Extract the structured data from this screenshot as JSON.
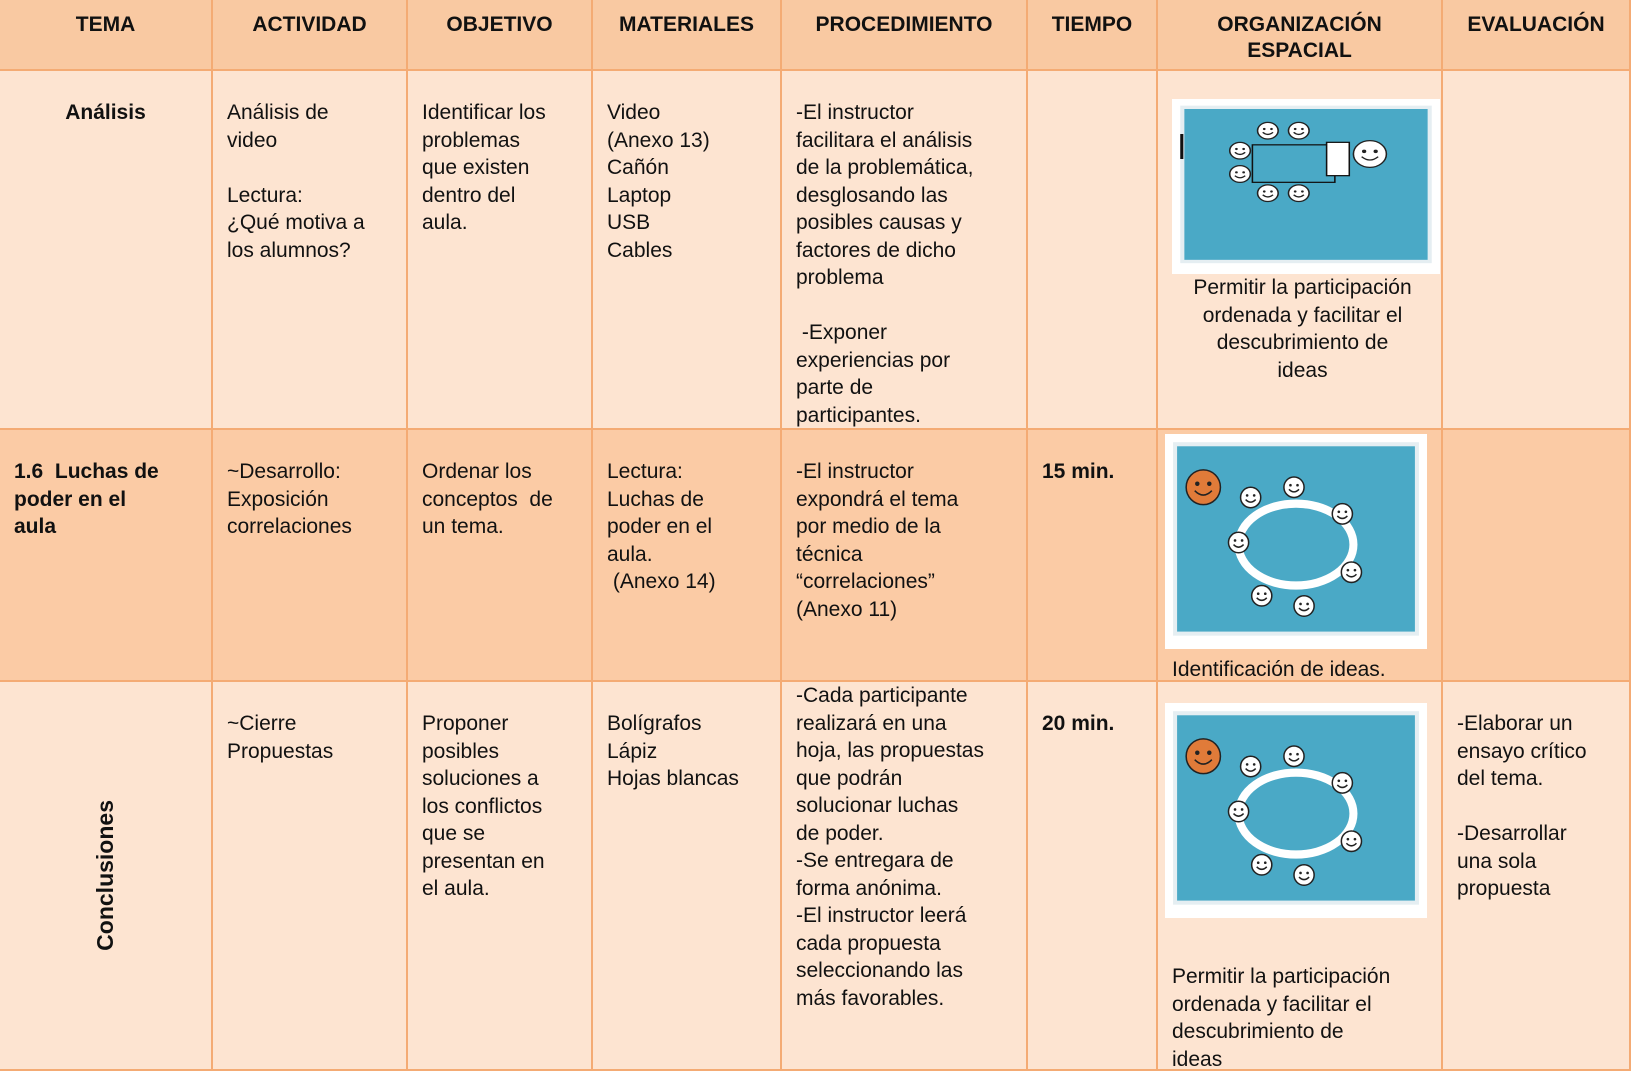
{
  "table": {
    "header": [
      [
        "TEMA"
      ],
      [
        "ACTIVIDAD"
      ],
      [
        "OBJETIVO"
      ],
      [
        "MATERIALES"
      ],
      [
        "PROCEDIMIENTO"
      ],
      [
        "TIEMPO"
      ],
      [
        "ORGANIZACIÓN",
        "ESPACIAL"
      ],
      [
        "EVALUACIÓN"
      ]
    ],
    "rows": [
      [
        [
          [
            "Análisis"
          ]
        ],
        [
          [
            "Análisis de",
            "video"
          ],
          [
            "Lectura:",
            "¿Qué motiva a",
            "los alumnos?"
          ]
        ],
        [
          [
            "Identificar los",
            "problemas",
            "que existen",
            "dentro del",
            "aula."
          ]
        ],
        [
          [
            "Video",
            "(Anexo 13)",
            "Cañón",
            "Laptop",
            "USB",
            "Cables"
          ]
        ],
        [
          [
            "-El instructor",
            "facilitara el análisis",
            "de la problemática,",
            "desglosando las",
            "posibles causas y",
            "factores de dicho",
            "problema"
          ],
          [
            " -Exponer",
            "experiencias por",
            "parte de",
            "participantes."
          ]
        ],
        [],
        [
          [
            "Permitir la participación",
            "ordenada y facilitar el",
            "descubrimiento de",
            "ideas"
          ]
        ],
        []
      ],
      [
        [
          [
            "1.6  Luchas de",
            "poder en el",
            "aula"
          ]
        ],
        [
          [
            "~Desarrollo:",
            "Exposición",
            "correlaciones"
          ]
        ],
        [
          [
            "Ordenar los",
            "conceptos  de",
            "un tema."
          ]
        ],
        [
          [
            "Lectura:",
            "Luchas de",
            "poder en el",
            "aula.",
            " (Anexo 14)"
          ]
        ],
        [
          [
            "-El instructor",
            "expondrá el tema",
            "por medio de la",
            "técnica",
            "“correlaciones”",
            "(Anexo 11)"
          ]
        ],
        [
          [
            "15 min."
          ]
        ],
        [
          [
            "Identificación de ideas."
          ]
        ],
        []
      ],
      [
        [
          [
            "Conclusiones"
          ]
        ],
        [
          [
            "~Cierre",
            "Propuestas"
          ]
        ],
        [
          [
            "Proponer",
            "posibles",
            "soluciones a",
            "los conflictos",
            "que se",
            "presentan en",
            "el aula."
          ]
        ],
        [
          [
            "Bolígrafos",
            "Lápiz",
            "Hojas blancas"
          ]
        ],
        [
          [
            "-Cada participante",
            "realizará en una",
            "hoja, las propuestas",
            "que podrán",
            "solucionar luchas",
            "de poder.",
            "-Se entregara de",
            "forma anónima.",
            "-El instructor leerá",
            "cada propuesta",
            "seleccionando las",
            "más favorables."
          ]
        ],
        [
          [
            "20 min."
          ]
        ],
        [
          [
            "Permitir la participación",
            "ordenada y facilitar el",
            "descubrimiento de",
            "ideas"
          ]
        ],
        [
          [
            "-Elaborar un",
            "ensayo crítico",
            "del tema."
          ],
          [
            "-Desarrollar",
            "una sola",
            "propuesta"
          ]
        ]
      ]
    ]
  }
}
